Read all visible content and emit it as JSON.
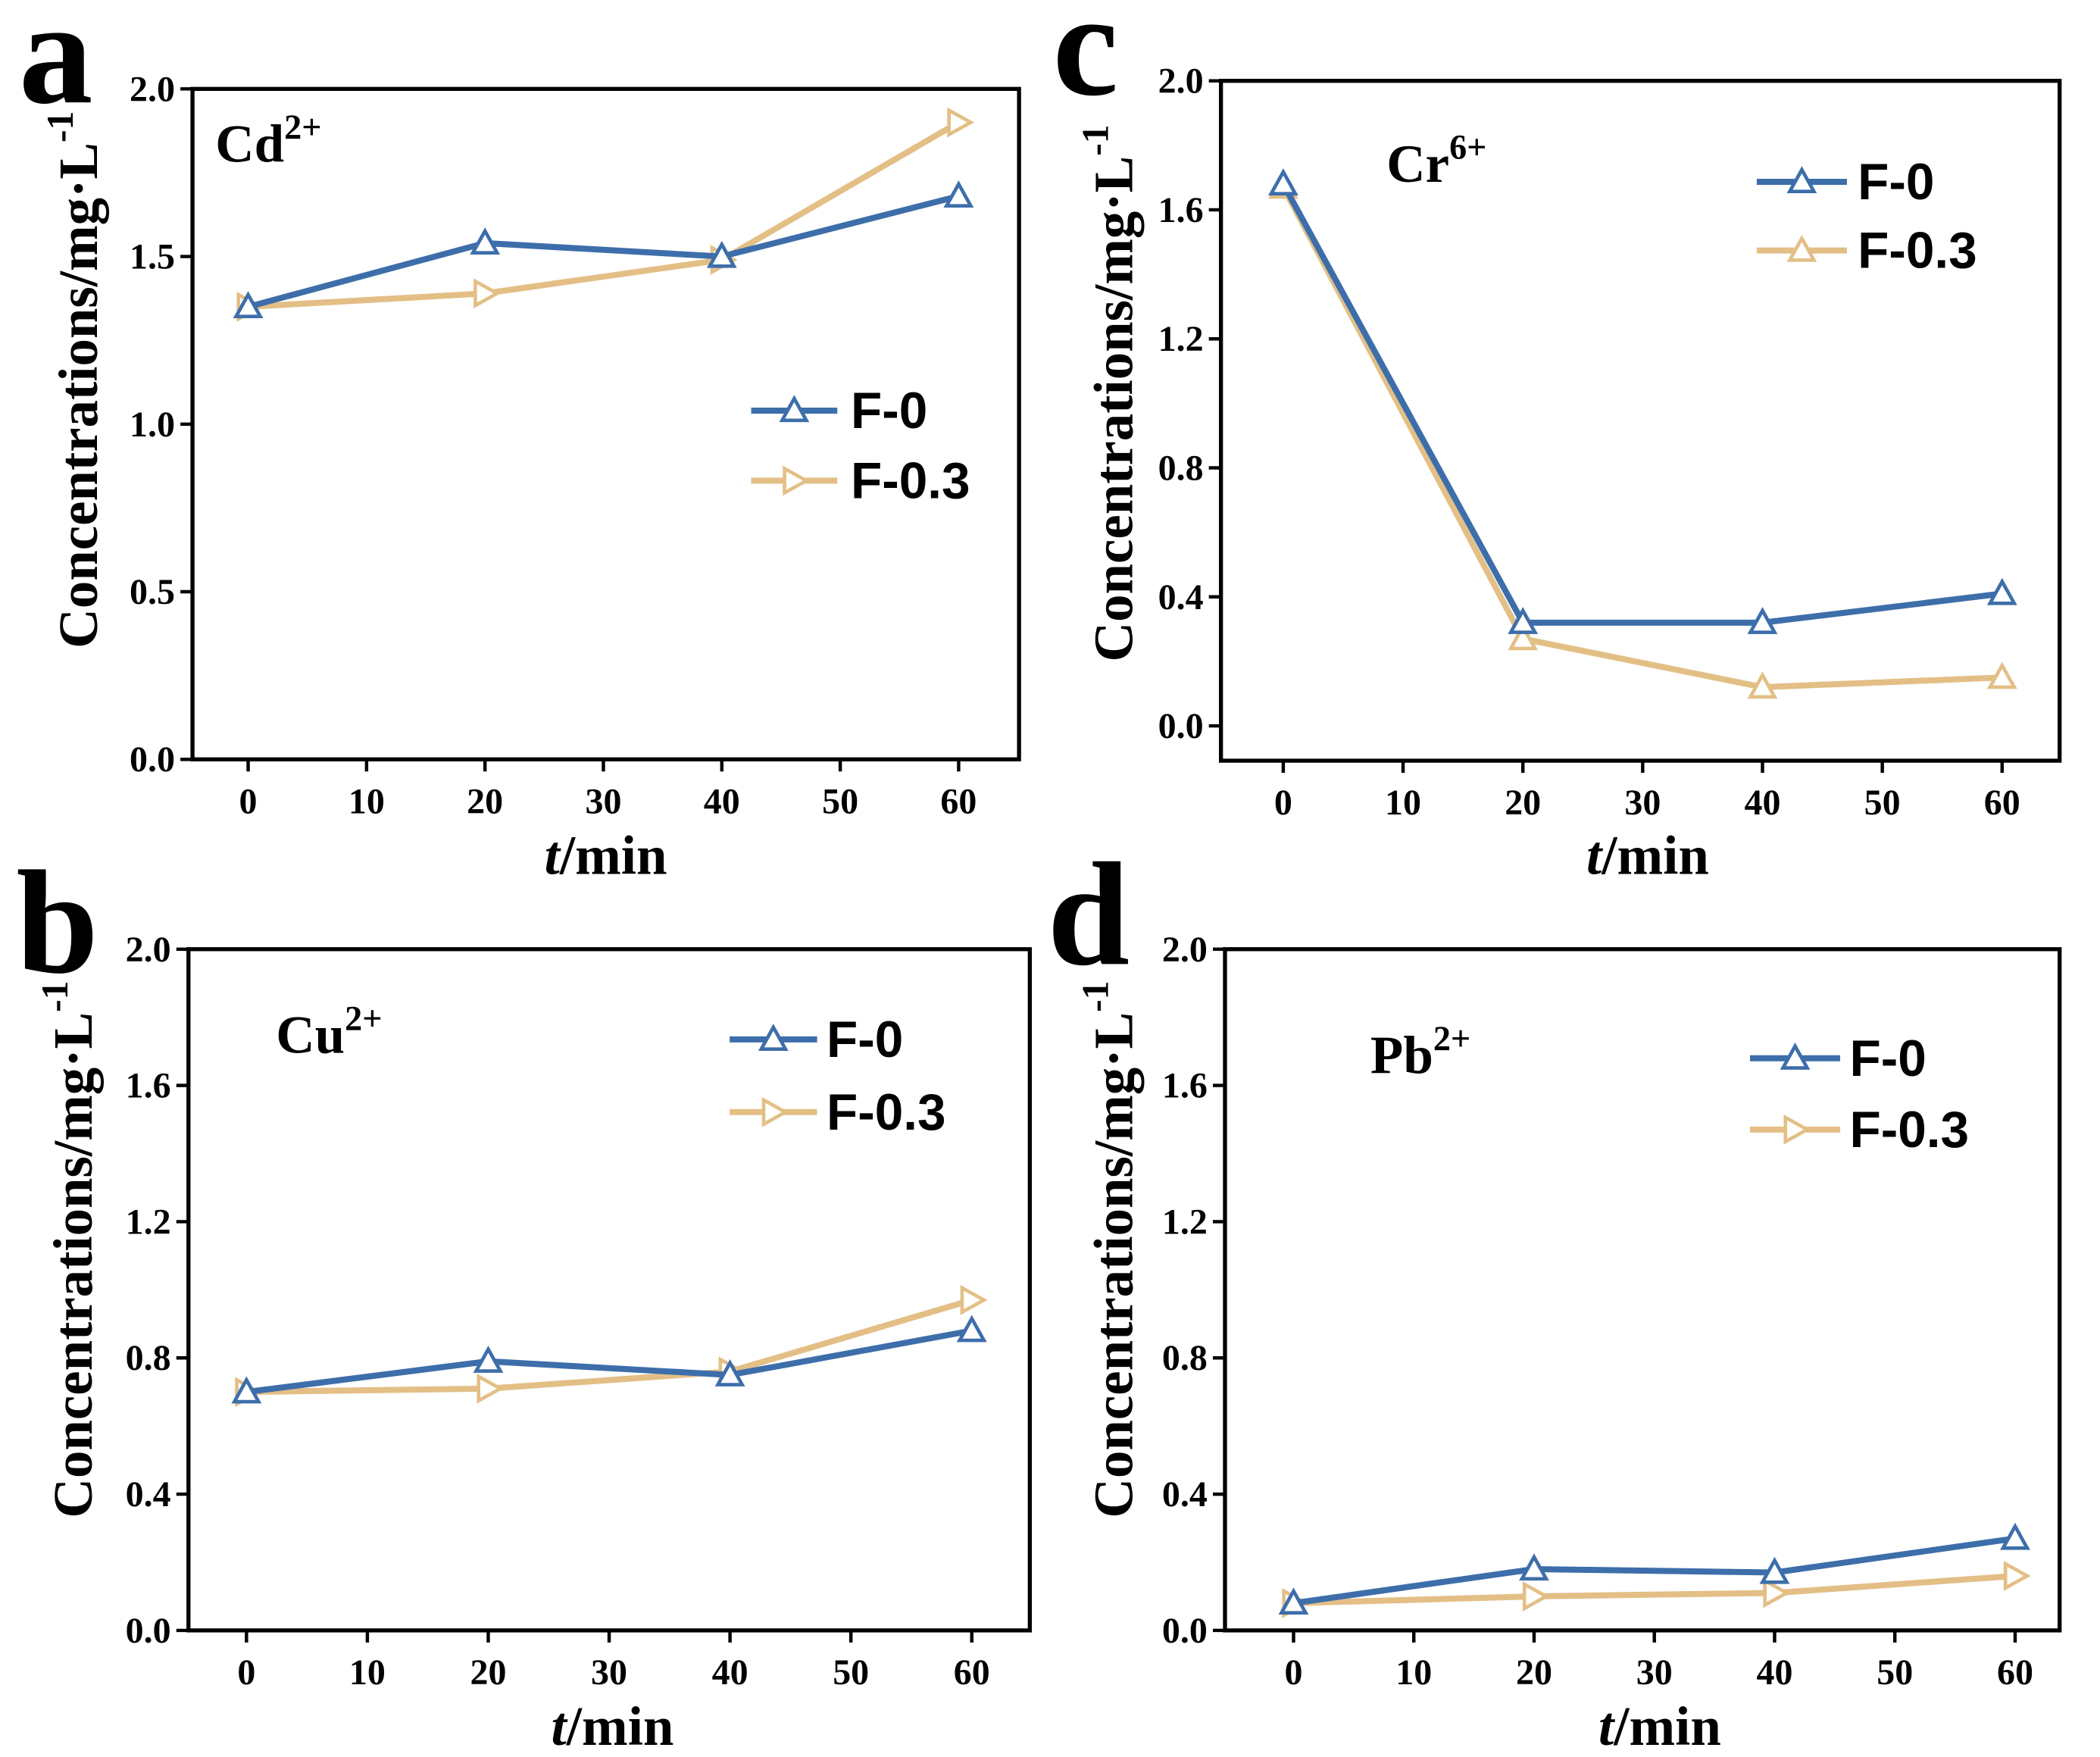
{
  "colors": {
    "f0": "#3D6EAA",
    "f03": "#E3BF86",
    "axis": "#000000",
    "background": "#FFFFFF"
  },
  "chart_data": [
    {
      "panel_label": "a",
      "type": "line",
      "ion": {
        "symbol": "Cd",
        "charge": "2+"
      },
      "xlabel": {
        "italic": "t",
        "unit": "/min"
      },
      "ylabel": {
        "text": "Concentrations/mg·L",
        "sup": "-1"
      },
      "x": [
        0,
        20,
        40,
        60
      ],
      "series": [
        {
          "name": "F-0",
          "values": [
            1.35,
            1.54,
            1.5,
            1.68
          ],
          "color": "#3D6EAA",
          "marker": "triangle-up"
        },
        {
          "name": "F-0.3",
          "values": [
            1.35,
            1.39,
            1.49,
            1.9
          ],
          "color": "#E3BF86",
          "marker": "triangle-right"
        }
      ],
      "xticks": [
        "0",
        "10",
        "20",
        "30",
        "40",
        "50",
        "60"
      ],
      "yticks": [
        "0.0",
        "0.5",
        "1.0",
        "1.5",
        "2.0"
      ],
      "xlim": [
        -4.7,
        65.1
      ],
      "ylim": [
        0,
        2.0
      ],
      "legend": "center-right"
    },
    {
      "panel_label": "b",
      "type": "line",
      "ion": {
        "symbol": "Cu",
        "charge": "2+"
      },
      "xlabel": {
        "italic": "t",
        "unit": "/min"
      },
      "ylabel": {
        "text": "Concentrations/mg·L",
        "sup": "-1"
      },
      "x": [
        0,
        20,
        40,
        60
      ],
      "series": [
        {
          "name": "F-0",
          "values": [
            0.7,
            0.79,
            0.75,
            0.88
          ],
          "color": "#3D6EAA",
          "marker": "triangle-up"
        },
        {
          "name": "F-0.3",
          "values": [
            0.7,
            0.71,
            0.76,
            0.97
          ],
          "color": "#E3BF86",
          "marker": "triangle-right"
        }
      ],
      "xticks": [
        "0",
        "10",
        "20",
        "30",
        "40",
        "50",
        "60"
      ],
      "yticks": [
        "0.0",
        "0.4",
        "0.8",
        "1.2",
        "1.6",
        "2.0"
      ],
      "xlim": [
        -4.8,
        64.8
      ],
      "ylim": [
        0,
        2.0
      ],
      "legend": "top-right"
    },
    {
      "panel_label": "c",
      "type": "line",
      "ion": {
        "symbol": "Cr",
        "charge": "6+"
      },
      "xlabel": {
        "italic": "t",
        "unit": "/min"
      },
      "ylabel": {
        "text": "Concentrations/mg·L",
        "sup": "-1"
      },
      "x": [
        0,
        20,
        40,
        60
      ],
      "series": [
        {
          "name": "F-0",
          "values": [
            1.68,
            0.32,
            0.32,
            0.41
          ],
          "color": "#3D6EAA",
          "marker": "triangle-up"
        },
        {
          "name": "F-0.3",
          "values": [
            1.67,
            0.27,
            0.12,
            0.15
          ],
          "color": "#E3BF86",
          "marker": "triangle-up"
        }
      ],
      "xticks": [
        "0",
        "10",
        "20",
        "30",
        "40",
        "50",
        "60"
      ],
      "yticks": [
        "0.0",
        "0.4",
        "0.8",
        "1.2",
        "1.6",
        "2.0"
      ],
      "xlim": [
        -5.2,
        64.8
      ],
      "ylim": [
        -0.108,
        2.0
      ],
      "legend": "top-right"
    },
    {
      "panel_label": "d",
      "type": "line",
      "ion": {
        "symbol": "Pb",
        "charge": "2+"
      },
      "xlabel": {
        "italic": "t",
        "unit": "/min"
      },
      "ylabel": {
        "text": "Concentrations/mg·L",
        "sup": "-1"
      },
      "x": [
        0,
        20,
        40,
        60
      ],
      "series": [
        {
          "name": "F-0",
          "values": [
            0.08,
            0.18,
            0.17,
            0.27
          ],
          "color": "#3D6EAA",
          "marker": "triangle-up"
        },
        {
          "name": "F-0.3",
          "values": [
            0.08,
            0.1,
            0.11,
            0.16
          ],
          "color": "#E3BF86",
          "marker": "triangle-right"
        }
      ],
      "xticks": [
        "0",
        "10",
        "20",
        "30",
        "40",
        "50",
        "60"
      ],
      "yticks": [
        "0.0",
        "0.4",
        "0.8",
        "1.2",
        "1.6",
        "2.0"
      ],
      "xlim": [
        -5.7,
        63.7
      ],
      "ylim": [
        0,
        2.0
      ],
      "legend": "top-right"
    }
  ]
}
